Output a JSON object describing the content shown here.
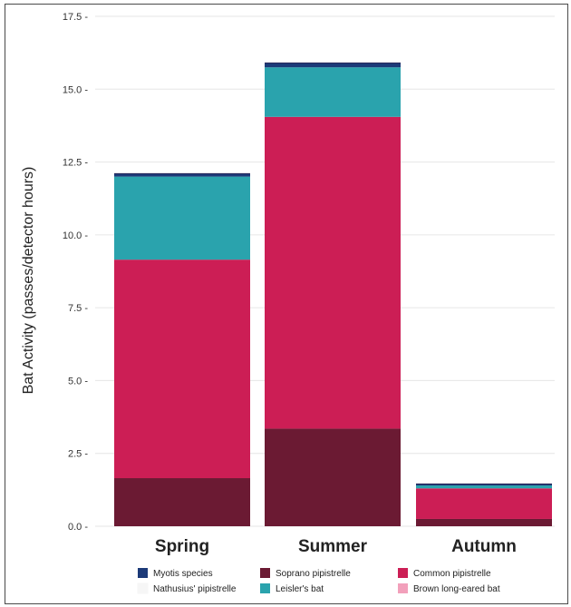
{
  "chart_data": {
    "type": "bar",
    "stacked": true,
    "ylabel": "Bat Activity (passes/detector hours)",
    "xlabel": "",
    "ylim": [
      0,
      17.5
    ],
    "yticks": [
      "0.0",
      "2.5",
      "5.0",
      "7.5",
      "10.0",
      "12.5",
      "15.0",
      "17.5"
    ],
    "categories": [
      "Spring",
      "Summer",
      "Autumn"
    ],
    "grid": true,
    "legend_position": "bottom",
    "series": [
      {
        "name": "Soprano pipistrelle",
        "color": "#6b1a33",
        "values": [
          1.65,
          3.35,
          0.25
        ]
      },
      {
        "name": "Common pipistrelle",
        "color": "#cc1e55",
        "values": [
          7.5,
          10.7,
          1.05
        ]
      },
      {
        "name": "Brown long-eared bat",
        "color": "#f2a0bb",
        "values": [
          0.0,
          0.0,
          0.0
        ]
      },
      {
        "name": "Nathusius' pipistrelle",
        "color": "#f6f6f6",
        "values": [
          0.0,
          0.0,
          0.0
        ]
      },
      {
        "name": "Leisler's bat",
        "color": "#2aa3ad",
        "values": [
          2.85,
          1.7,
          0.1
        ]
      },
      {
        "name": "Myotis species",
        "color": "#1c3a78",
        "values": [
          0.1,
          0.15,
          0.05
        ]
      }
    ],
    "legend_order": [
      "Myotis species",
      "Nathusius' pipistrelle",
      "Soprano pipistrelle",
      "Leisler's bat",
      "Common pipistrelle",
      "Brown long-eared bat"
    ]
  }
}
